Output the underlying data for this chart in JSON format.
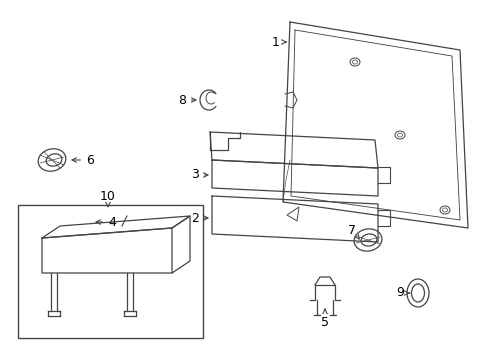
{
  "background_color": "#ffffff",
  "line_color": "#444444",
  "label_color": "#000000",
  "fig_width": 4.89,
  "fig_height": 3.6,
  "dpi": 100
}
